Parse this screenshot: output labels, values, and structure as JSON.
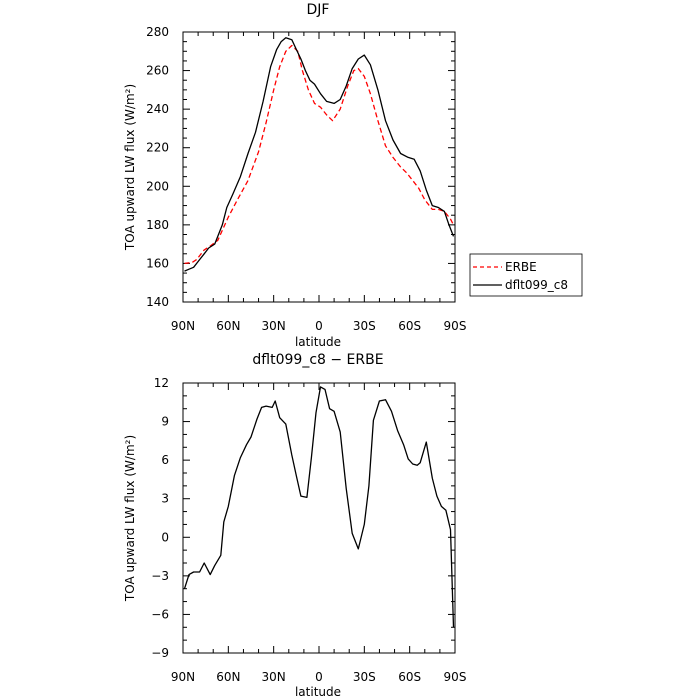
{
  "chart_data": [
    {
      "type": "line",
      "title": "DJF",
      "xlabel": "latitude",
      "ylabel": "TOA upward LW flux (W/m²)",
      "xlim": [
        -90,
        90
      ],
      "ylim": [
        140,
        280
      ],
      "xticks": [
        {
          "value": -90,
          "label": "90N"
        },
        {
          "value": -60,
          "label": "60N"
        },
        {
          "value": -30,
          "label": "30N"
        },
        {
          "value": 0,
          "label": "0"
        },
        {
          "value": 30,
          "label": "30S"
        },
        {
          "value": 60,
          "label": "60S"
        },
        {
          "value": 90,
          "label": "90S"
        }
      ],
      "yticks": [
        140,
        160,
        180,
        200,
        220,
        240,
        260,
        280
      ],
      "legend_position": "outside-right",
      "series": [
        {
          "name": "ERBE",
          "color": "#ff0000",
          "dash": "dashed",
          "x": [
            -89,
            -84,
            -81,
            -76,
            -72,
            -67,
            -60,
            -54,
            -47,
            -40,
            -35,
            -30,
            -26,
            -22,
            -18,
            -14,
            -11,
            -7,
            -3,
            1,
            5,
            9,
            14,
            19,
            23,
            26,
            30,
            34,
            39,
            44,
            49,
            54,
            58,
            62,
            66,
            70,
            75,
            79,
            83,
            87,
            89
          ],
          "y": [
            160,
            160.5,
            162,
            167,
            169,
            172,
            184,
            193,
            203,
            218,
            233,
            250,
            262,
            270,
            273,
            270,
            260,
            250,
            243,
            241,
            237,
            234,
            240,
            252,
            260,
            261,
            257,
            248,
            234,
            221,
            215,
            210,
            207,
            203,
            199,
            193,
            188,
            188,
            187,
            183,
            180
          ]
        },
        {
          "name": "dflt099_c8",
          "color": "#000000",
          "dash": "solid",
          "x": [
            -89,
            -86,
            -83,
            -79,
            -76,
            -73,
            -69,
            -64,
            -61,
            -57,
            -52,
            -47,
            -42,
            -37,
            -32,
            -28,
            -25,
            -22,
            -18,
            -15,
            -12,
            -9,
            -6,
            -3,
            1,
            5,
            10,
            14,
            18,
            22,
            26,
            30,
            34,
            39,
            44,
            49,
            54,
            59,
            63,
            67,
            71,
            75,
            79,
            83,
            86,
            89
          ],
          "y": [
            156,
            157,
            158,
            162,
            165,
            168,
            170,
            180,
            189,
            196,
            205,
            217,
            228,
            244,
            262,
            271,
            275,
            277,
            276,
            271,
            266,
            260,
            255,
            253,
            248,
            244,
            243,
            245,
            252,
            261,
            266,
            268,
            263,
            250,
            234,
            224,
            217,
            215,
            214,
            208,
            198,
            190,
            189,
            187,
            180,
            174
          ]
        }
      ]
    },
    {
      "type": "line",
      "title": "dflt099_c8 − ERBE",
      "xlabel": "latitude",
      "ylabel": "TOA upward LW flux (W/m²)",
      "xlim": [
        -90,
        90
      ],
      "ylim": [
        -9,
        12
      ],
      "xticks": [
        {
          "value": -90,
          "label": "90N"
        },
        {
          "value": -60,
          "label": "60N"
        },
        {
          "value": -30,
          "label": "30N"
        },
        {
          "value": 0,
          "label": "0"
        },
        {
          "value": 30,
          "label": "30S"
        },
        {
          "value": 60,
          "label": "60S"
        },
        {
          "value": 90,
          "label": "90S"
        }
      ],
      "yticks": [
        -9,
        -6,
        -3,
        0,
        3,
        6,
        9,
        12
      ],
      "series": [
        {
          "color": "#000000",
          "dash": "solid",
          "x": [
            -89,
            -86,
            -83,
            -79,
            -76,
            -72,
            -69,
            -65,
            -63,
            -60,
            -56,
            -52,
            -48,
            -45,
            -41,
            -38,
            -35,
            -31,
            -29,
            -26,
            -22,
            -18,
            -15,
            -12,
            -8,
            -5,
            -2,
            1,
            4,
            7,
            10,
            14,
            18,
            22,
            26,
            30,
            33,
            36,
            40,
            44,
            48,
            52,
            56,
            59,
            62,
            65,
            67,
            71,
            75,
            78,
            81,
            84,
            87,
            89
          ],
          "y": [
            -4,
            -2.9,
            -2.7,
            -2.7,
            -2.0,
            -2.9,
            -2.2,
            -1.4,
            1.2,
            2.4,
            4.8,
            6.2,
            7.2,
            7.8,
            9.2,
            10.1,
            10.2,
            10.1,
            10.6,
            9.3,
            8.8,
            6.4,
            4.8,
            3.2,
            3.1,
            6.2,
            9.7,
            11.7,
            11.5,
            10.0,
            9.8,
            8.2,
            3.8,
            0.3,
            -0.9,
            1.0,
            4.0,
            9.1,
            10.6,
            10.7,
            9.8,
            8.3,
            7.2,
            6.1,
            5.7,
            5.6,
            5.8,
            7.4,
            4.6,
            3.2,
            2.4,
            2.1,
            0.6,
            -7
          ]
        }
      ]
    }
  ]
}
